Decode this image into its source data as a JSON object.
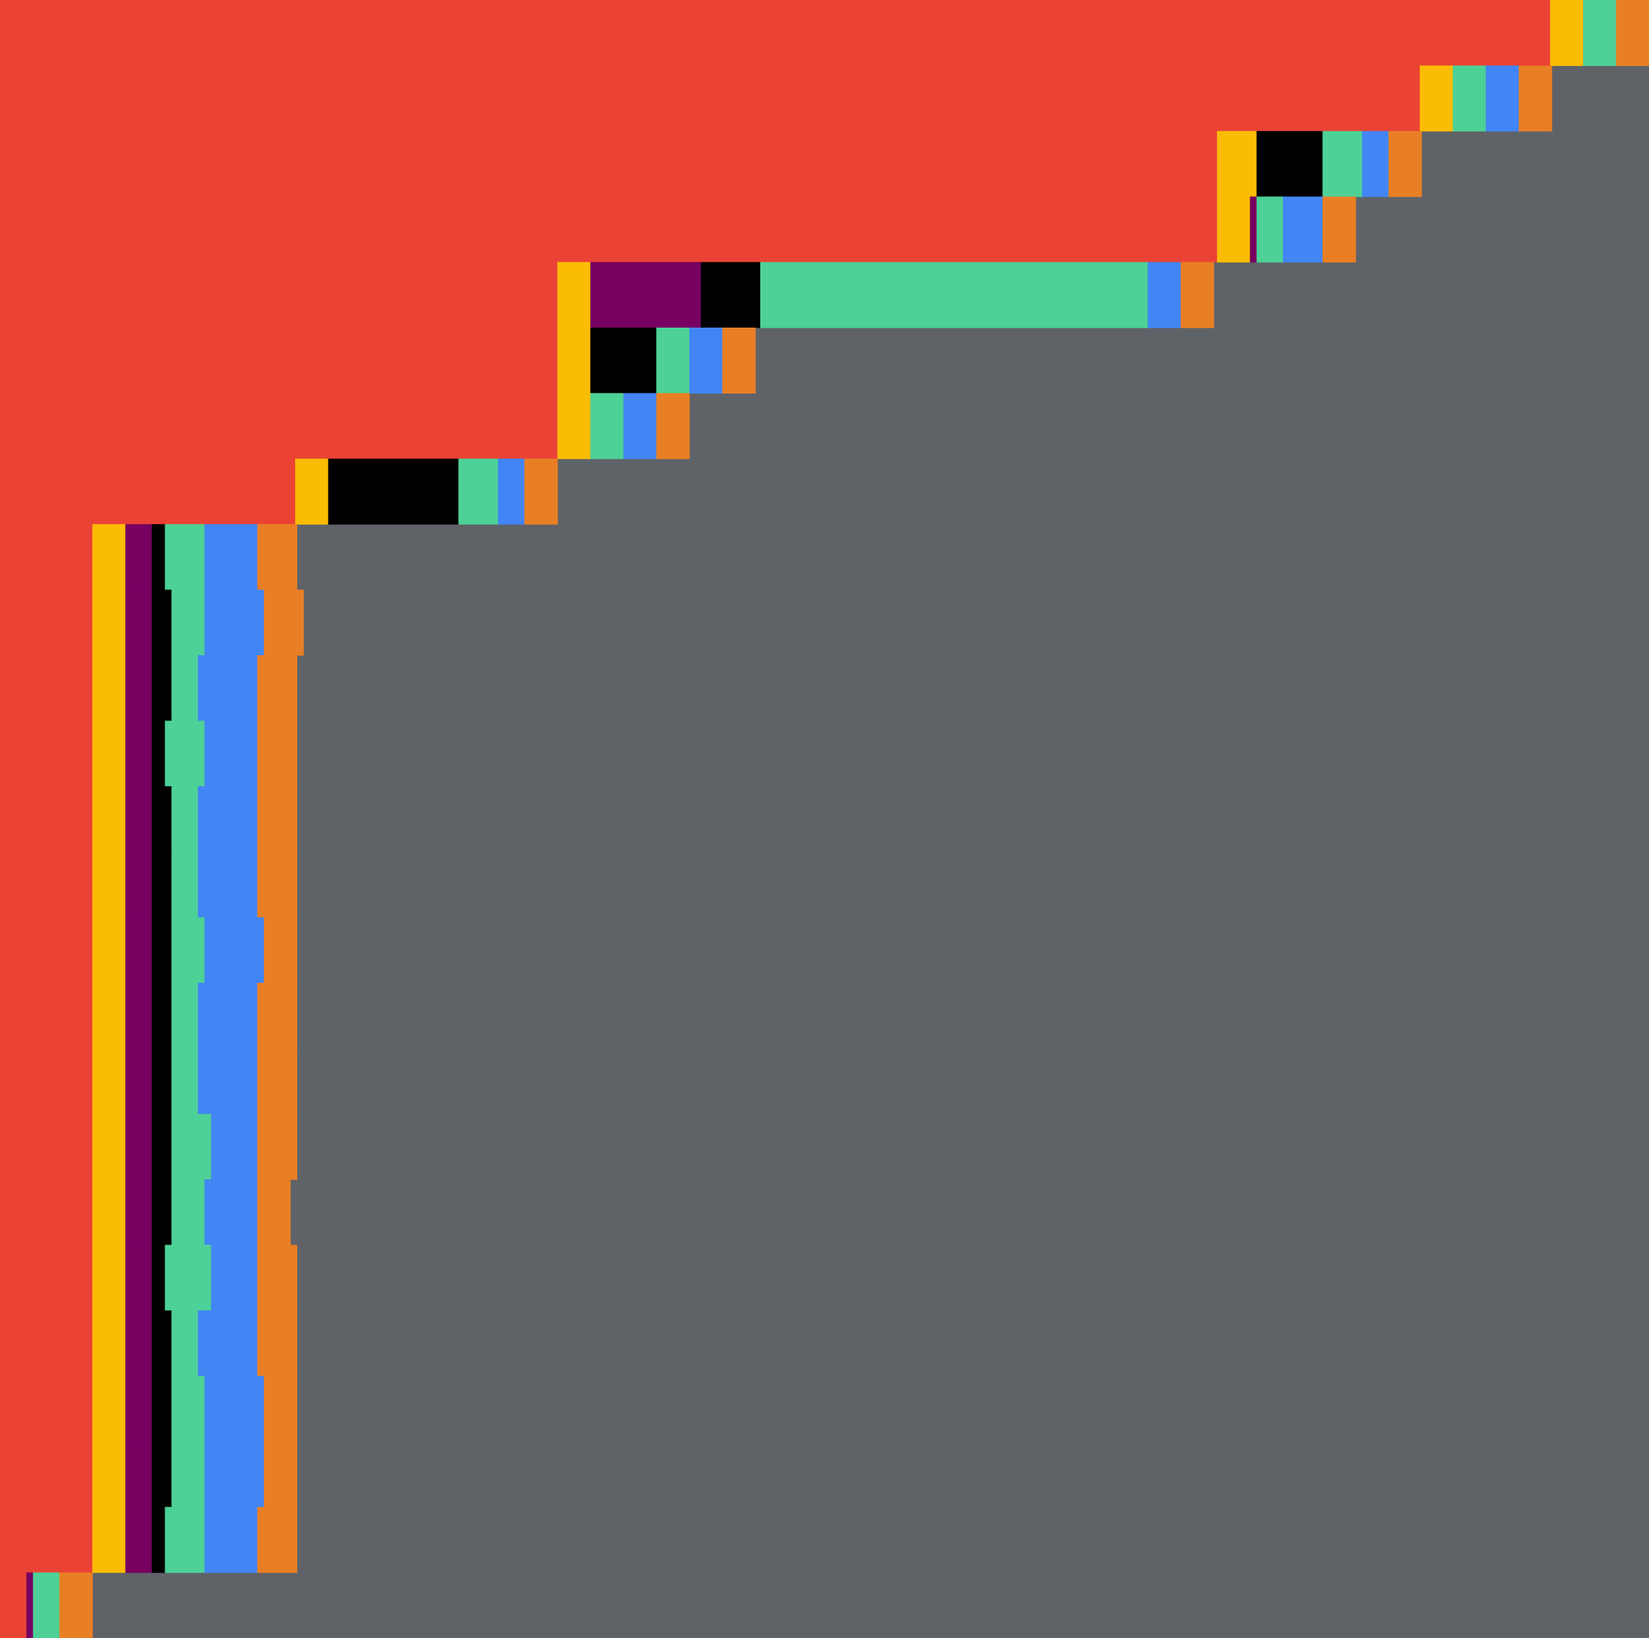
{
  "chart_data": {
    "type": "bar",
    "orientation": "horizontal",
    "stacked": true,
    "title": "",
    "xlabel": "",
    "ylabel": "",
    "grid": false,
    "legend": "none",
    "background": "#5f6368",
    "xlim": [
      0,
      100
    ],
    "series": [
      {
        "color": "#ea4335"
      },
      {
        "color": "#fbbc04"
      },
      {
        "color": "#770061"
      },
      {
        "color": "#000000"
      },
      {
        "color": "#4dd196"
      },
      {
        "color": "#4285f4"
      },
      {
        "color": "#e97f25"
      }
    ],
    "rows": [
      [
        94.0,
        2.0,
        0,
        0,
        2.0,
        0,
        2.0
      ],
      [
        86.1,
        2.0,
        0,
        0,
        2.0,
        2.0,
        2.0
      ],
      [
        73.8,
        2.4,
        0,
        4.0,
        2.4,
        1.6,
        2.0
      ],
      [
        73.8,
        2.0,
        0.4,
        0,
        1.6,
        2.4,
        2.0
      ],
      [
        33.8,
        2.0,
        6.7,
        3.6,
        23.5,
        2.0,
        2.0
      ],
      [
        33.8,
        2.0,
        0,
        4.0,
        2.0,
        2.0,
        2.0
      ],
      [
        33.8,
        2.0,
        0,
        0,
        2.0,
        2.0,
        2.0
      ],
      [
        17.9,
        2.0,
        0,
        7.9,
        2.4,
        1.6,
        2.0
      ],
      [
        5.6,
        2.0,
        1.6,
        0.8,
        2.4,
        3.2,
        2.4
      ],
      [
        5.6,
        2.0,
        1.6,
        1.2,
        2.0,
        3.6,
        2.4
      ],
      [
        5.6,
        2.0,
        1.6,
        1.2,
        1.6,
        3.6,
        2.4
      ],
      [
        5.6,
        2.0,
        1.6,
        0.8,
        2.4,
        3.2,
        2.4
      ],
      [
        5.6,
        2.0,
        1.6,
        1.2,
        1.6,
        3.6,
        2.4
      ],
      [
        5.6,
        2.0,
        1.6,
        1.2,
        1.6,
        3.6,
        2.4
      ],
      [
        5.6,
        2.0,
        1.6,
        1.2,
        2.0,
        3.6,
        2.0
      ],
      [
        5.6,
        2.0,
        1.6,
        1.2,
        1.6,
        3.6,
        2.4
      ],
      [
        5.6,
        2.0,
        1.6,
        1.2,
        1.6,
        3.6,
        2.4
      ],
      [
        5.6,
        2.0,
        1.6,
        1.2,
        2.4,
        2.8,
        2.4
      ],
      [
        5.6,
        2.0,
        1.6,
        1.2,
        2.0,
        3.2,
        2.0
      ],
      [
        5.6,
        2.0,
        1.6,
        0.8,
        2.8,
        2.8,
        2.4
      ],
      [
        5.6,
        2.0,
        1.6,
        1.2,
        1.6,
        3.6,
        2.4
      ],
      [
        5.6,
        2.0,
        1.6,
        1.2,
        2.0,
        3.6,
        2.0
      ],
      [
        5.6,
        2.0,
        1.6,
        1.2,
        2.0,
        3.6,
        2.0
      ],
      [
        5.6,
        2.0,
        1.6,
        0.8,
        2.4,
        3.2,
        2.4
      ],
      [
        1.6,
        0,
        0.4,
        0,
        1.6,
        0,
        2.0
      ]
    ]
  }
}
